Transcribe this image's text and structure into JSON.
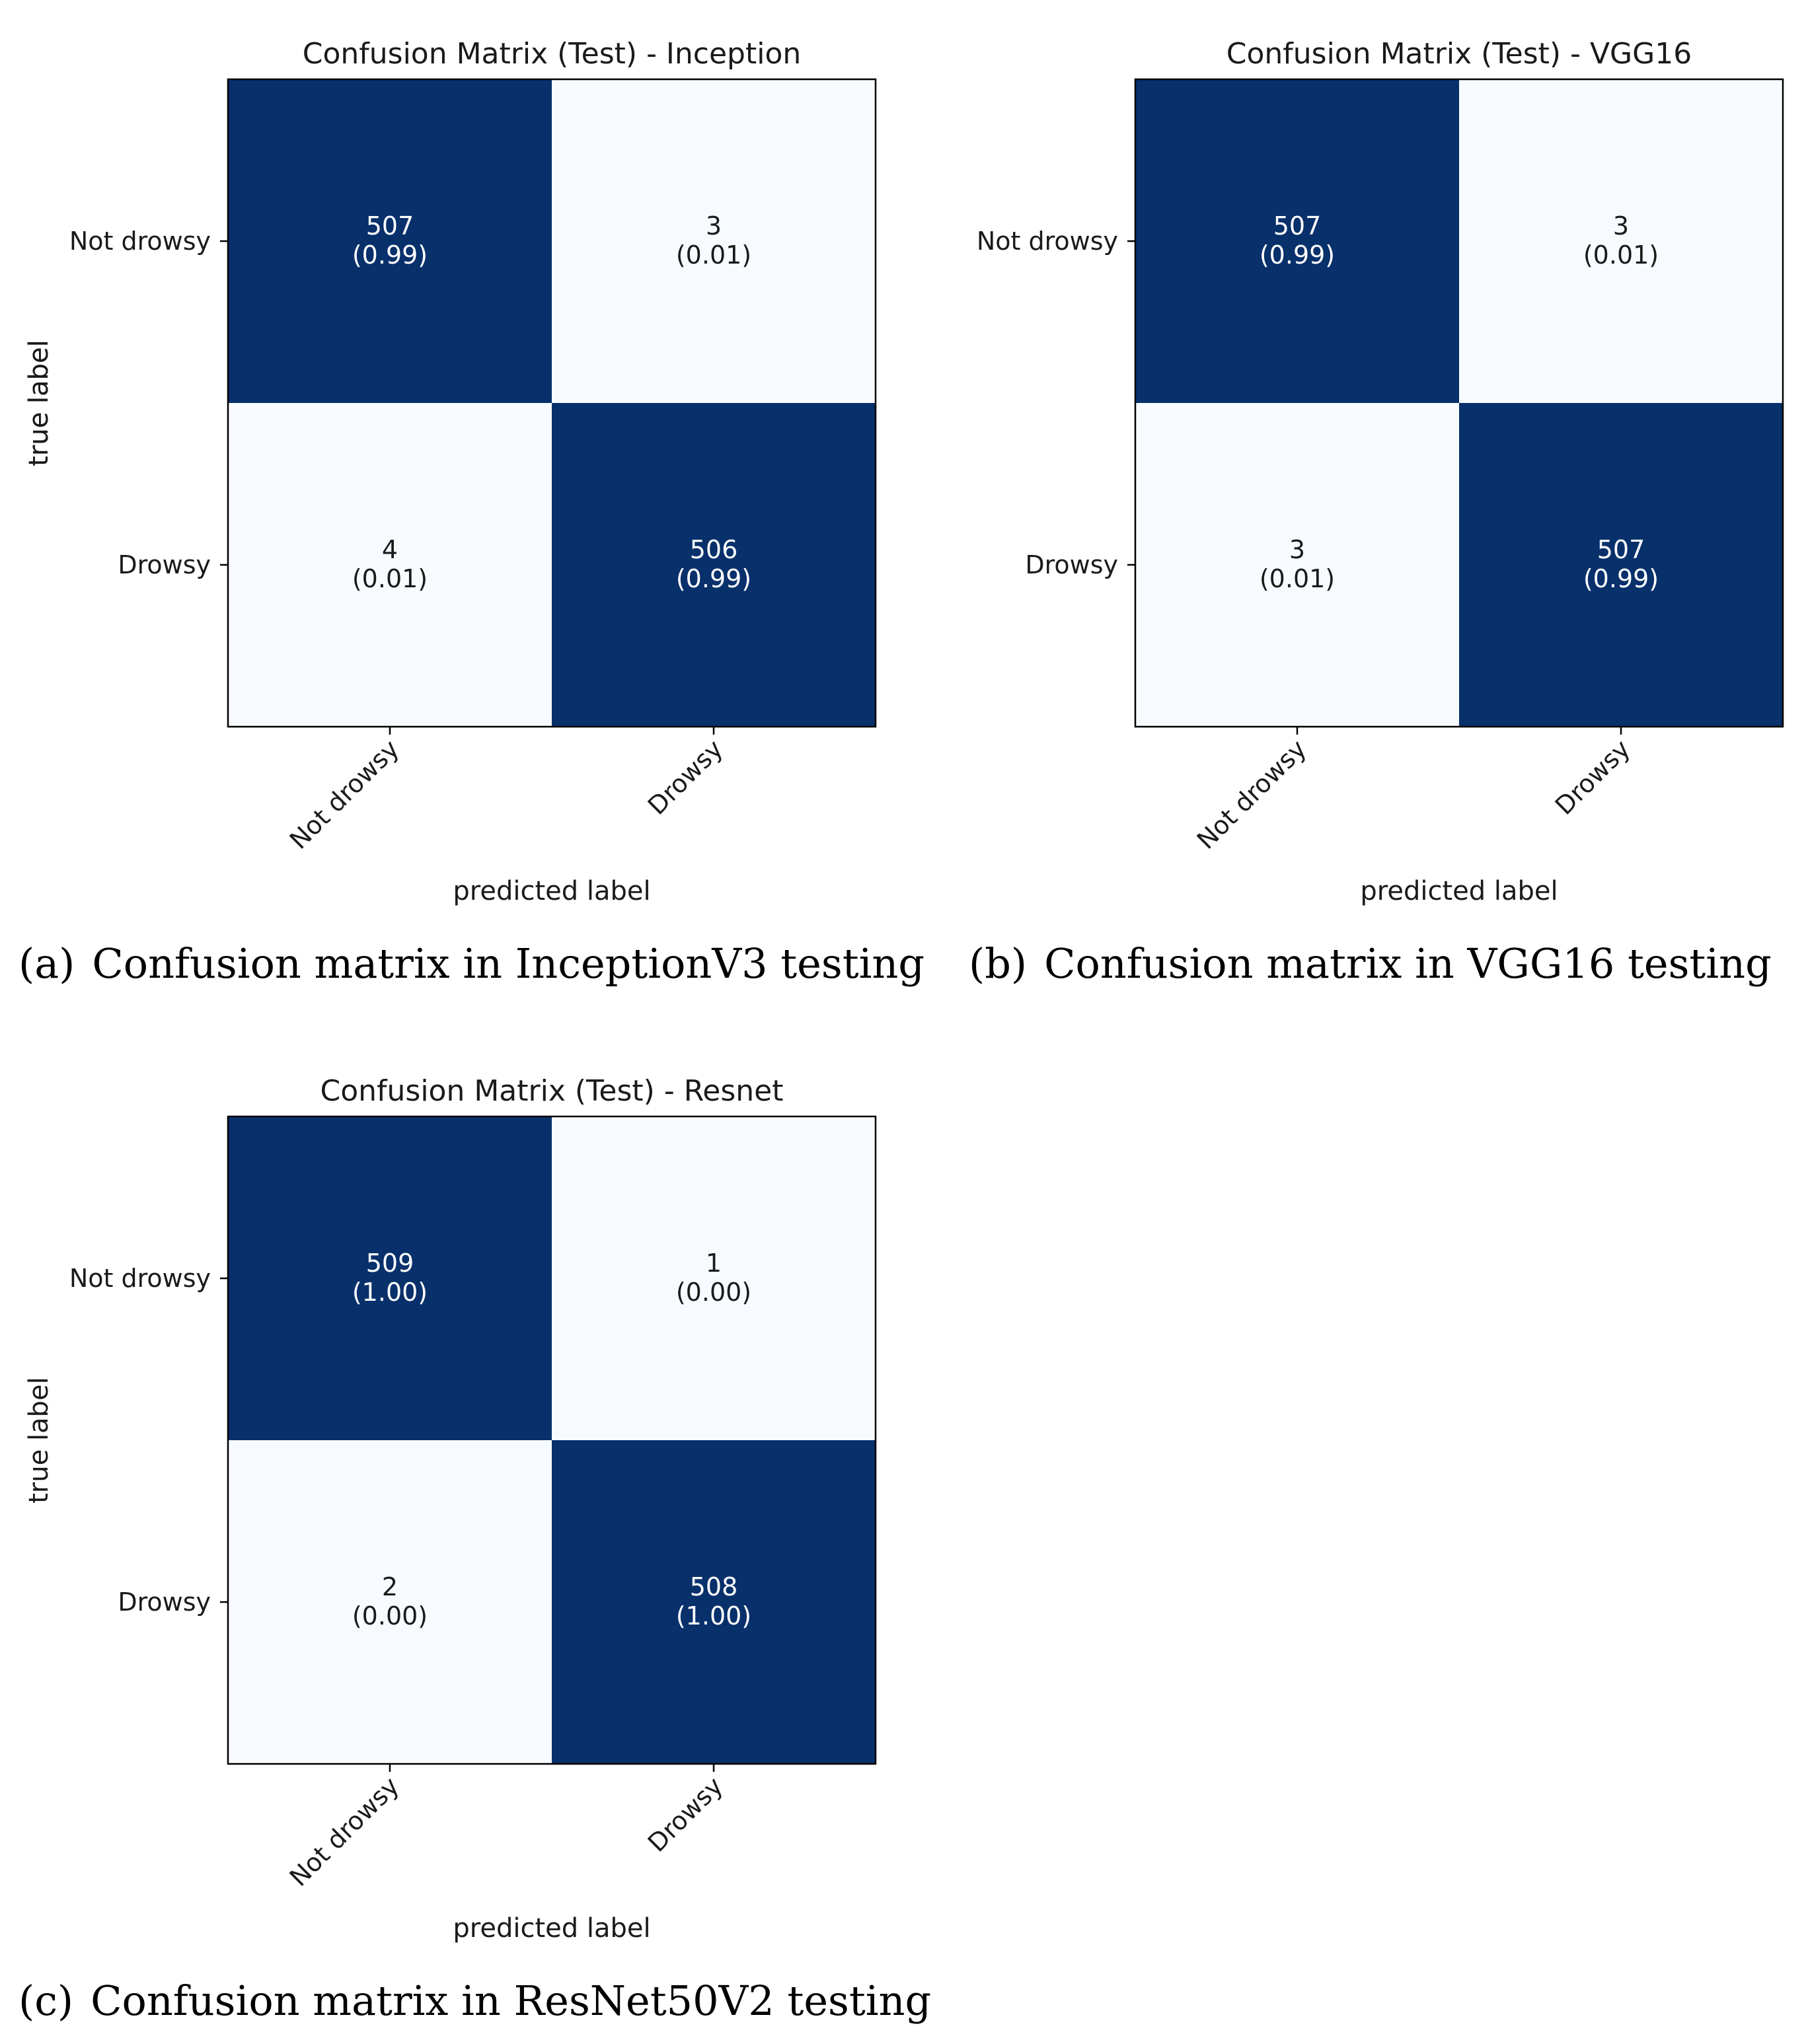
{
  "colors": {
    "high": "#08306b",
    "low": "#f7fbff",
    "text_on_high": "#ffffff",
    "text_on_low": "#1a1a1a"
  },
  "chart_data": [
    {
      "type": "heatmap",
      "title": "Confusion Matrix (Test) - Inception",
      "xlabel": "predicted label",
      "ylabel": "true label",
      "rows": [
        "Not drowsy",
        "Drowsy"
      ],
      "cols": [
        "Not drowsy",
        "Drowsy"
      ],
      "counts": [
        [
          507,
          3
        ],
        [
          4,
          506
        ]
      ],
      "fractions": [
        "(0.99)",
        "(0.01)",
        "(0.01)",
        "(0.99)"
      ],
      "caption_label": "(a)",
      "caption": "Confusion matrix in InceptionV3 testing"
    },
    {
      "type": "heatmap",
      "title": "Confusion Matrix (Test) - VGG16",
      "xlabel": "predicted label",
      "ylabel": "true label",
      "rows": [
        "Not drowsy",
        "Drowsy"
      ],
      "cols": [
        "Not drowsy",
        "Drowsy"
      ],
      "counts": [
        [
          507,
          3
        ],
        [
          3,
          507
        ]
      ],
      "fractions": [
        "(0.99)",
        "(0.01)",
        "(0.01)",
        "(0.99)"
      ],
      "caption_label": "(b)",
      "caption": "Confusion matrix in VGG16 testing"
    },
    {
      "type": "heatmap",
      "title": "Confusion Matrix (Test) - Resnet",
      "xlabel": "predicted label",
      "ylabel": "true label",
      "rows": [
        "Not drowsy",
        "Drowsy"
      ],
      "cols": [
        "Not drowsy",
        "Drowsy"
      ],
      "counts": [
        [
          509,
          1
        ],
        [
          2,
          508
        ]
      ],
      "fractions": [
        "(1.00)",
        "(0.00)",
        "(0.00)",
        "(1.00)"
      ],
      "caption_label": "(c)",
      "caption": "Confusion matrix in ResNet50V2 testing"
    }
  ]
}
